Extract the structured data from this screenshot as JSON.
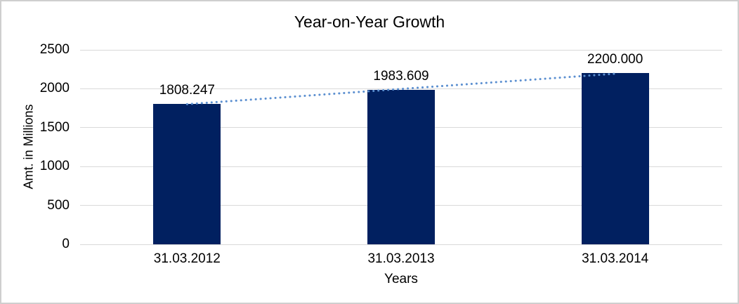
{
  "chart_data": {
    "type": "bar",
    "title": "Year-on-Year Growth",
    "categories": [
      "31.03.2012",
      "31.03.2013",
      "31.03.2014"
    ],
    "values": [
      1808.247,
      1983.609,
      2200.0
    ],
    "value_labels": [
      "1808.247",
      "1983.609",
      "2200.000"
    ],
    "xlabel": "Years",
    "ylabel": "Amt. in Millions",
    "ylim": [
      0,
      2500
    ],
    "yticks": [
      0,
      500,
      1000,
      1500,
      2000,
      2500
    ],
    "ytick_labels": [
      "0",
      "500",
      "1000",
      "1500",
      "2000",
      "2500"
    ],
    "grid": "horizontal",
    "legend": "none",
    "trend": {
      "fit": "linear",
      "style": "dotted"
    },
    "colors": {
      "bar": "#012060",
      "trendline": "#5b8fd0",
      "gridline": "#d9d9d9",
      "text": "#000000",
      "background": "#ffffff",
      "border": "#cfcfcf"
    }
  }
}
